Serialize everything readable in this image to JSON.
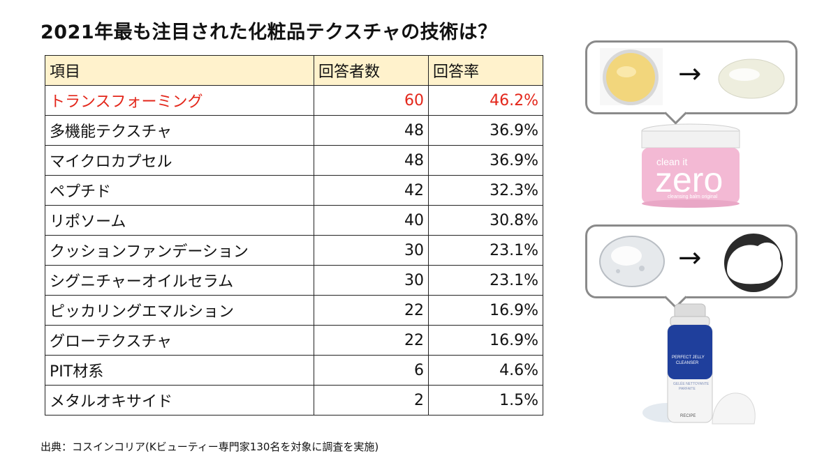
{
  "title": "2021年最も注目された化粧品テクスチャの技術は？",
  "table": {
    "headers": [
      "項目",
      "回答者数",
      "回答率"
    ],
    "rows": [
      {
        "item": "トランスフォーミング",
        "count": "60",
        "rate": "46.2%",
        "highlight": true
      },
      {
        "item": "多機能テクスチャ",
        "count": "48",
        "rate": "36.9%",
        "highlight": false
      },
      {
        "item": "マイクロカプセル",
        "count": "48",
        "rate": "36.9%",
        "highlight": false
      },
      {
        "item": "ペプチド",
        "count": "42",
        "rate": "32.3%",
        "highlight": false
      },
      {
        "item": "リポソーム",
        "count": "40",
        "rate": "30.8%",
        "highlight": false
      },
      {
        "item": "クッションファンデーション",
        "count": "30",
        "rate": "23.1%",
        "highlight": false
      },
      {
        "item": "シグニチャーオイルセラム",
        "count": "30",
        "rate": "23.1%",
        "highlight": false
      },
      {
        "item": "ピッカリングエマルション",
        "count": "22",
        "rate": "16.9%",
        "highlight": false
      },
      {
        "item": "グローテクスチャ",
        "count": "22",
        "rate": "16.9%",
        "highlight": false
      },
      {
        "item": "PIT材系",
        "count": "6",
        "rate": "4.6%",
        "highlight": false
      },
      {
        "item": "メタルオキサイド",
        "count": "2",
        "rate": "1.5%",
        "highlight": false
      }
    ]
  },
  "source": "出典：コスインコリア(Kビューティー専門家130名を対象に調査を実施)",
  "illustrations": {
    "arrow": "→",
    "product_1": {
      "line1": "clean it",
      "line2": "zero",
      "line3": "cleansing balm original"
    },
    "product_2": {
      "line1": "PERFECT JELLY",
      "line2": "CLEANSER",
      "line3": "GELÉE NETTOYANTE",
      "line4": "PARFAITE",
      "brand": "RECIPE"
    }
  },
  "colors": {
    "header_bg": "#fff2cc",
    "highlight_text": "#e3261a",
    "border": "#222222",
    "bubble_border": "#8a8a8a",
    "product_1_pink": "#f3b9d4",
    "product_2_blue": "#1f3f9c"
  }
}
